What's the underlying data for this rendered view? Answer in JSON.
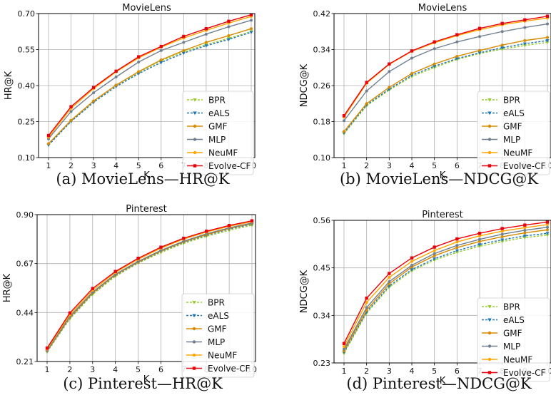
{
  "chart_data": [
    {
      "type": "line",
      "title": "MovieLens",
      "caption": "(a) MovieLens—HR@K",
      "xlabel": "K",
      "ylabel": "HR@K",
      "x": [
        1,
        2,
        3,
        4,
        5,
        6,
        7,
        8,
        9,
        10
      ],
      "ylim": [
        0.1,
        0.7
      ],
      "yticks": [
        "0.10",
        "0.25",
        "0.40",
        "0.55",
        "0.70"
      ],
      "ytick_values": [
        0.1,
        0.25,
        0.4,
        0.55,
        0.7
      ],
      "grid": true,
      "legend_position": "lower-right",
      "series": [
        {
          "name": "BPR",
          "color": "#9acd32",
          "marker": "triangle-down",
          "dashed": true,
          "values": [
            0.153,
            0.253,
            0.332,
            0.398,
            0.455,
            0.503,
            0.54,
            0.571,
            0.597,
            0.625
          ]
        },
        {
          "name": "eALS",
          "color": "#1f77b4",
          "marker": "triangle-down",
          "dashed": true,
          "values": [
            0.152,
            0.25,
            0.33,
            0.396,
            0.45,
            0.496,
            0.535,
            0.566,
            0.592,
            0.622
          ]
        },
        {
          "name": "GMF",
          "color": "#d88a00",
          "marker": "dot",
          "dashed": false,
          "values": [
            0.158,
            0.255,
            0.336,
            0.402,
            0.458,
            0.507,
            0.546,
            0.58,
            0.608,
            0.637
          ]
        },
        {
          "name": "MLP",
          "color": "#708090",
          "marker": "dot",
          "dashed": false,
          "values": [
            0.178,
            0.292,
            0.37,
            0.436,
            0.498,
            0.546,
            0.58,
            0.614,
            0.645,
            0.672
          ]
        },
        {
          "name": "NeuMF",
          "color": "#ffa500",
          "marker": "dot",
          "dashed": false,
          "values": [
            0.185,
            0.305,
            0.387,
            0.457,
            0.515,
            0.56,
            0.598,
            0.63,
            0.66,
            0.688
          ]
        },
        {
          "name": "Evolve-CF",
          "color": "#e8000b",
          "marker": "square",
          "dashed": false,
          "values": [
            0.192,
            0.312,
            0.392,
            0.46,
            0.52,
            0.563,
            0.605,
            0.637,
            0.668,
            0.695
          ]
        }
      ]
    },
    {
      "type": "line",
      "title": "MovieLens",
      "caption": "(b) MovieLens—NDCG@K",
      "xlabel": "K",
      "ylabel": "NDCG@K",
      "x": [
        1,
        2,
        3,
        4,
        5,
        6,
        7,
        8,
        9,
        10
      ],
      "ylim": [
        0.1,
        0.42
      ],
      "yticks": [
        "0.10",
        "0.18",
        "0.26",
        "0.34",
        "0.42"
      ],
      "ytick_values": [
        0.1,
        0.18,
        0.26,
        0.34,
        0.42
      ],
      "grid": true,
      "legend_position": "lower-right",
      "series": [
        {
          "name": "BPR",
          "color": "#9acd32",
          "marker": "triangle-down",
          "dashed": true,
          "values": [
            0.153,
            0.215,
            0.25,
            0.28,
            0.3,
            0.318,
            0.331,
            0.341,
            0.349,
            0.356
          ]
        },
        {
          "name": "eALS",
          "color": "#1f77b4",
          "marker": "triangle-down",
          "dashed": true,
          "values": [
            0.155,
            0.217,
            0.252,
            0.283,
            0.303,
            0.32,
            0.333,
            0.344,
            0.353,
            0.36
          ]
        },
        {
          "name": "GMF",
          "color": "#d88a00",
          "marker": "dot",
          "dashed": false,
          "values": [
            0.158,
            0.22,
            0.256,
            0.287,
            0.308,
            0.325,
            0.338,
            0.35,
            0.36,
            0.367
          ]
        },
        {
          "name": "MLP",
          "color": "#708090",
          "marker": "dot",
          "dashed": false,
          "values": [
            0.182,
            0.248,
            0.291,
            0.321,
            0.342,
            0.357,
            0.369,
            0.38,
            0.389,
            0.397
          ]
        },
        {
          "name": "NeuMF",
          "color": "#ffa500",
          "marker": "dot",
          "dashed": false,
          "values": [
            0.19,
            0.265,
            0.307,
            0.336,
            0.355,
            0.371,
            0.384,
            0.395,
            0.403,
            0.41
          ]
        },
        {
          "name": "Evolve-CF",
          "color": "#e8000b",
          "marker": "square",
          "dashed": false,
          "values": [
            0.193,
            0.267,
            0.308,
            0.337,
            0.357,
            0.373,
            0.387,
            0.398,
            0.406,
            0.414
          ]
        }
      ]
    },
    {
      "type": "line",
      "title": "Pinterest",
      "caption": "(c) Pinterest—HR@K",
      "xlabel": "K",
      "ylabel": "HR@K",
      "x": [
        1,
        2,
        3,
        4,
        5,
        6,
        7,
        8,
        9,
        10
      ],
      "ylim": [
        0.21,
        0.9
      ],
      "yticks": [
        "0.21",
        "0.44",
        "0.67",
        "0.90"
      ],
      "ytick_values": [
        0.21,
        0.44,
        0.67,
        0.9
      ],
      "grid": true,
      "legend_position": "lower-right",
      "series": [
        {
          "name": "BPR",
          "color": "#9acd32",
          "marker": "triangle-down",
          "dashed": true,
          "values": [
            0.255,
            0.41,
            0.525,
            0.61,
            0.672,
            0.722,
            0.765,
            0.798,
            0.826,
            0.85
          ]
        },
        {
          "name": "eALS",
          "color": "#1f77b4",
          "marker": "triangle-down",
          "dashed": true,
          "values": [
            0.258,
            0.415,
            0.53,
            0.615,
            0.675,
            0.727,
            0.77,
            0.803,
            0.832,
            0.855
          ]
        },
        {
          "name": "GMF",
          "color": "#d88a00",
          "marker": "dot",
          "dashed": false,
          "values": [
            0.26,
            0.418,
            0.532,
            0.617,
            0.677,
            0.729,
            0.772,
            0.806,
            0.835,
            0.858
          ]
        },
        {
          "name": "MLP",
          "color": "#708090",
          "marker": "dot",
          "dashed": false,
          "values": [
            0.262,
            0.422,
            0.536,
            0.62,
            0.68,
            0.732,
            0.775,
            0.81,
            0.838,
            0.861
          ]
        },
        {
          "name": "NeuMF",
          "color": "#ffa500",
          "marker": "dot",
          "dashed": false,
          "values": [
            0.268,
            0.43,
            0.545,
            0.628,
            0.69,
            0.742,
            0.785,
            0.818,
            0.845,
            0.867
          ]
        },
        {
          "name": "Evolve-CF",
          "color": "#e8000b",
          "marker": "square",
          "dashed": false,
          "values": [
            0.273,
            0.438,
            0.553,
            0.633,
            0.695,
            0.747,
            0.789,
            0.822,
            0.849,
            0.871
          ]
        }
      ]
    },
    {
      "type": "line",
      "title": "Pinterest",
      "caption": "(d) Pinterest—NDCG@K",
      "xlabel": "K",
      "ylabel": "NDCG@K",
      "x": [
        1,
        2,
        3,
        4,
        5,
        6,
        7,
        8,
        9,
        10
      ],
      "ylim": [
        0.23,
        0.56
      ],
      "yticks": [
        "0.23",
        "0.34",
        "0.45",
        "0.56"
      ],
      "ytick_values": [
        0.23,
        0.34,
        0.45,
        0.56
      ],
      "grid": true,
      "legend_position": "lower-right",
      "series": [
        {
          "name": "BPR",
          "color": "#9acd32",
          "marker": "triangle-down",
          "dashed": true,
          "values": [
            0.252,
            0.345,
            0.405,
            0.443,
            0.468,
            0.486,
            0.5,
            0.511,
            0.52,
            0.526
          ]
        },
        {
          "name": "eALS",
          "color": "#1f77b4",
          "marker": "triangle-down",
          "dashed": true,
          "values": [
            0.255,
            0.348,
            0.408,
            0.446,
            0.471,
            0.49,
            0.504,
            0.515,
            0.524,
            0.53
          ]
        },
        {
          "name": "GMF",
          "color": "#d88a00",
          "marker": "dot",
          "dashed": false,
          "values": [
            0.258,
            0.352,
            0.413,
            0.452,
            0.478,
            0.497,
            0.511,
            0.522,
            0.531,
            0.538
          ]
        },
        {
          "name": "MLP",
          "color": "#708090",
          "marker": "dot",
          "dashed": false,
          "values": [
            0.262,
            0.358,
            0.418,
            0.456,
            0.483,
            0.502,
            0.516,
            0.528,
            0.537,
            0.544
          ]
        },
        {
          "name": "NeuMF",
          "color": "#ffa500",
          "marker": "dot",
          "dashed": false,
          "values": [
            0.268,
            0.37,
            0.428,
            0.465,
            0.49,
            0.51,
            0.524,
            0.535,
            0.543,
            0.55
          ]
        },
        {
          "name": "Evolve-CF",
          "color": "#e8000b",
          "marker": "square",
          "dashed": false,
          "values": [
            0.275,
            0.38,
            0.437,
            0.473,
            0.498,
            0.517,
            0.53,
            0.541,
            0.549,
            0.556
          ]
        }
      ]
    }
  ]
}
